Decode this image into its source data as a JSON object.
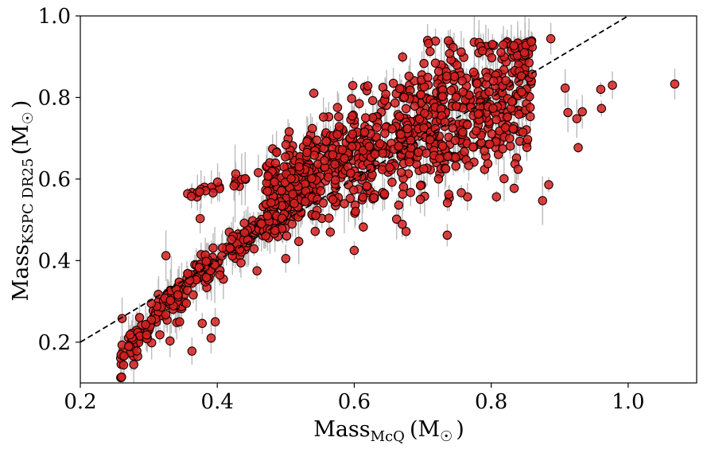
{
  "chart_data": {
    "type": "scatter",
    "title": "",
    "xlabel": {
      "main": "Mass",
      "sub": "McQ",
      "unit": "(M",
      "unit_sub": "☉",
      "unit_close": ")"
    },
    "ylabel": {
      "main": "Mass",
      "sub": "KSPC DR25",
      "unit": "(M",
      "unit_sub": "☉",
      "unit_close": ")"
    },
    "xlim": [
      0.2,
      1.1
    ],
    "ylim": [
      0.1,
      1.0
    ],
    "xticks": [
      "0.2",
      "0.4",
      "0.6",
      "0.8",
      "1.0"
    ],
    "yticks": [
      "0.2",
      "0.4",
      "0.6",
      "0.8",
      "1.0"
    ],
    "grid": false,
    "reference_line": {
      "style": "dashed",
      "color": "#000000",
      "x": [
        0.2,
        1.0
      ],
      "y": [
        0.2,
        1.0
      ]
    },
    "marker_fill": "#d62020",
    "marker_edge": "#1a0000",
    "errorbar_color": "#bbbbbb",
    "point_groups": [
      {
        "region": "low-mass diagonal band",
        "x_range": [
          0.26,
          0.55
        ],
        "y_range": [
          0.14,
          0.6
        ],
        "approx_count": 320
      },
      {
        "region": "upper branch",
        "x_range": [
          0.35,
          0.46
        ],
        "y_range": [
          0.55,
          0.62
        ],
        "approx_count": 25
      },
      {
        "region": "main cloud",
        "x_range": [
          0.47,
          0.87
        ],
        "y_range": [
          0.42,
          0.94
        ],
        "approx_count": 900
      }
    ],
    "outliers": [
      {
        "x": 0.261,
        "y": 0.258
      },
      {
        "x": 0.278,
        "y": 0.145
      },
      {
        "x": 0.325,
        "y": 0.412
      },
      {
        "x": 0.331,
        "y": 0.203
      },
      {
        "x": 0.345,
        "y": 0.25
      },
      {
        "x": 0.363,
        "y": 0.178
      },
      {
        "x": 0.375,
        "y": 0.503
      },
      {
        "x": 0.378,
        "y": 0.246
      },
      {
        "x": 0.391,
        "y": 0.21
      },
      {
        "x": 0.397,
        "y": 0.25
      },
      {
        "x": 0.458,
        "y": 0.375
      },
      {
        "x": 0.5,
        "y": 0.405
      },
      {
        "x": 0.505,
        "y": 0.716
      },
      {
        "x": 0.519,
        "y": 0.447
      },
      {
        "x": 0.555,
        "y": 0.752
      },
      {
        "x": 0.565,
        "y": 0.47
      },
      {
        "x": 0.6,
        "y": 0.425
      },
      {
        "x": 0.875,
        "y": 0.547
      },
      {
        "x": 0.884,
        "y": 0.586
      },
      {
        "x": 0.887,
        "y": 0.944
      },
      {
        "x": 0.908,
        "y": 0.823
      },
      {
        "x": 0.912,
        "y": 0.763
      },
      {
        "x": 0.925,
        "y": 0.748
      },
      {
        "x": 0.927,
        "y": 0.677
      },
      {
        "x": 0.933,
        "y": 0.765
      },
      {
        "x": 0.96,
        "y": 0.82
      },
      {
        "x": 0.961,
        "y": 0.773
      },
      {
        "x": 0.977,
        "y": 0.83
      },
      {
        "x": 1.068,
        "y": 0.833
      }
    ]
  }
}
